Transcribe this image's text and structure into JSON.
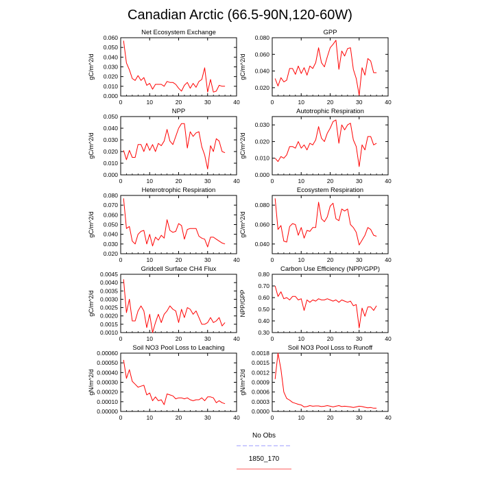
{
  "figure": {
    "title": "Canadian Arctic (66.5-90N,120-60W)"
  },
  "legend": {
    "items": [
      {
        "label": "No Obs",
        "color": "#9999ff",
        "style": "dashed"
      },
      {
        "label": "1850_170",
        "color": "#ff5555",
        "style": "solid"
      }
    ]
  },
  "chart_data": [
    {
      "type": "line",
      "title": "Net Ecosystem Exchange",
      "ylabel": "gC/m^2/d",
      "xlim": [
        0,
        40
      ],
      "ylim": [
        0,
        0.06
      ],
      "xticks": [
        0,
        10,
        20,
        30,
        40
      ],
      "yticks": [
        "0.000",
        "0.010",
        "0.020",
        "0.030",
        "0.040",
        "0.050",
        "0.060"
      ],
      "series": [
        {
          "color": "#ff0000",
          "x": [
            1,
            2,
            3,
            4,
            5,
            6,
            7,
            8,
            9,
            10,
            11,
            12,
            13,
            14,
            15,
            16,
            17,
            18,
            19,
            20,
            21,
            22,
            23,
            24,
            25,
            26,
            27,
            28,
            29,
            30,
            31,
            32,
            33,
            34,
            35,
            36
          ],
          "values": [
            0.057,
            0.034,
            0.027,
            0.018,
            0.016,
            0.021,
            0.016,
            0.019,
            0.011,
            0.013,
            0.007,
            0.012,
            0.012,
            0.012,
            0.01,
            0.015,
            0.014,
            0.014,
            0.012,
            0.008,
            0.005,
            0.011,
            0.014,
            0.008,
            0.013,
            0.009,
            0.015,
            0.017,
            0.029,
            0.004,
            0.017,
            0.004,
            0.005,
            0.011,
            0.01,
            0.01
          ]
        }
      ]
    },
    {
      "type": "line",
      "title": "GPP",
      "ylabel": "gC/m^2/d",
      "xlim": [
        0,
        40
      ],
      "ylim": [
        0.01,
        0.08
      ],
      "xticks": [
        0,
        10,
        20,
        30,
        40
      ],
      "yticks": [
        "0.020",
        "0.040",
        "0.060",
        "0.080"
      ],
      "series": [
        {
          "color": "#ff0000",
          "x": [
            1,
            2,
            3,
            4,
            5,
            6,
            7,
            8,
            9,
            10,
            11,
            12,
            13,
            14,
            15,
            16,
            17,
            18,
            19,
            20,
            21,
            22,
            23,
            24,
            25,
            26,
            27,
            28,
            29,
            30,
            31,
            32,
            33,
            34,
            35,
            36
          ],
          "values": [
            0.031,
            0.022,
            0.032,
            0.027,
            0.029,
            0.043,
            0.043,
            0.036,
            0.046,
            0.037,
            0.044,
            0.035,
            0.046,
            0.043,
            0.05,
            0.068,
            0.05,
            0.045,
            0.057,
            0.068,
            0.072,
            0.077,
            0.042,
            0.064,
            0.058,
            0.067,
            0.068,
            0.042,
            0.031,
            0.011,
            0.044,
            0.035,
            0.055,
            0.052,
            0.038,
            0.038
          ]
        }
      ]
    },
    {
      "type": "line",
      "title": "NPP",
      "ylabel": "gC/m^2/d",
      "xlim": [
        0,
        40
      ],
      "ylim": [
        0,
        0.05
      ],
      "xticks": [
        0,
        10,
        20,
        30,
        40
      ],
      "yticks": [
        "0.000",
        "0.010",
        "0.020",
        "0.030",
        "0.040",
        "0.050"
      ],
      "series": [
        {
          "color": "#ff0000",
          "x": [
            1,
            2,
            3,
            4,
            5,
            6,
            7,
            8,
            9,
            10,
            11,
            12,
            13,
            14,
            15,
            16,
            17,
            18,
            19,
            20,
            21,
            22,
            23,
            24,
            25,
            26,
            27,
            28,
            29,
            30,
            31,
            32,
            33,
            34,
            35,
            36
          ],
          "values": [
            0.021,
            0.013,
            0.021,
            0.015,
            0.015,
            0.026,
            0.026,
            0.02,
            0.027,
            0.021,
            0.026,
            0.02,
            0.027,
            0.025,
            0.029,
            0.039,
            0.029,
            0.026,
            0.033,
            0.04,
            0.044,
            0.044,
            0.023,
            0.037,
            0.033,
            0.036,
            0.037,
            0.024,
            0.017,
            0.005,
            0.025,
            0.02,
            0.031,
            0.029,
            0.02,
            0.019
          ]
        }
      ]
    },
    {
      "type": "line",
      "title": "Autotrophic Respiration",
      "ylabel": "gC/m^2/d",
      "xlim": [
        0,
        40
      ],
      "ylim": [
        0,
        0.035
      ],
      "xticks": [
        0,
        10,
        20,
        30,
        40
      ],
      "yticks": [
        "0.000",
        "0.010",
        "0.020",
        "0.030"
      ],
      "series": [
        {
          "color": "#ff0000",
          "x": [
            1,
            2,
            3,
            4,
            5,
            6,
            7,
            8,
            9,
            10,
            11,
            12,
            13,
            14,
            15,
            16,
            17,
            18,
            19,
            20,
            21,
            22,
            23,
            24,
            25,
            26,
            27,
            28,
            29,
            30,
            31,
            32,
            33,
            34,
            35,
            36
          ],
          "values": [
            0.01,
            0.008,
            0.011,
            0.01,
            0.012,
            0.017,
            0.017,
            0.016,
            0.02,
            0.016,
            0.018,
            0.015,
            0.019,
            0.018,
            0.021,
            0.029,
            0.022,
            0.02,
            0.025,
            0.028,
            0.032,
            0.033,
            0.019,
            0.03,
            0.027,
            0.03,
            0.031,
            0.021,
            0.017,
            0.005,
            0.018,
            0.015,
            0.023,
            0.023,
            0.018,
            0.019
          ]
        }
      ]
    },
    {
      "type": "line",
      "title": "Heterotrophic Respiration",
      "ylabel": "gC/m^2/d",
      "xlim": [
        0,
        40
      ],
      "ylim": [
        0.02,
        0.08
      ],
      "xticks": [
        0,
        10,
        20,
        30,
        40
      ],
      "yticks": [
        "0.020",
        "0.030",
        "0.040",
        "0.050",
        "0.060",
        "0.070",
        "0.080"
      ],
      "series": [
        {
          "color": "#ff0000",
          "x": [
            1,
            2,
            3,
            4,
            5,
            6,
            7,
            8,
            9,
            10,
            11,
            12,
            13,
            14,
            15,
            16,
            17,
            18,
            19,
            20,
            21,
            22,
            23,
            24,
            25,
            26,
            27,
            28,
            29,
            30,
            31,
            32,
            33,
            34,
            35,
            36
          ],
          "values": [
            0.077,
            0.046,
            0.048,
            0.033,
            0.03,
            0.04,
            0.043,
            0.044,
            0.03,
            0.04,
            0.028,
            0.037,
            0.034,
            0.039,
            0.036,
            0.055,
            0.044,
            0.042,
            0.043,
            0.051,
            0.049,
            0.035,
            0.045,
            0.046,
            0.046,
            0.046,
            0.038,
            0.036,
            0.035,
            0.027,
            0.037,
            0.037,
            0.035,
            0.033,
            0.031,
            0.03
          ]
        }
      ]
    },
    {
      "type": "line",
      "title": "Ecosystem Respiration",
      "ylabel": "gC/m^2/d",
      "xlim": [
        0,
        40
      ],
      "ylim": [
        0.03,
        0.09
      ],
      "xticks": [
        0,
        10,
        20,
        30,
        40
      ],
      "yticks": [
        "0.040",
        "0.060",
        "0.080"
      ],
      "series": [
        {
          "color": "#ff0000",
          "x": [
            1,
            2,
            3,
            4,
            5,
            6,
            7,
            8,
            9,
            10,
            11,
            12,
            13,
            14,
            15,
            16,
            17,
            18,
            19,
            20,
            21,
            22,
            23,
            24,
            25,
            26,
            27,
            28,
            29,
            30,
            31,
            32,
            33,
            34,
            35,
            36
          ],
          "values": [
            0.087,
            0.055,
            0.059,
            0.043,
            0.042,
            0.058,
            0.061,
            0.06,
            0.049,
            0.057,
            0.046,
            0.054,
            0.053,
            0.057,
            0.057,
            0.083,
            0.066,
            0.063,
            0.068,
            0.079,
            0.082,
            0.066,
            0.064,
            0.076,
            0.074,
            0.076,
            0.06,
            0.057,
            0.052,
            0.039,
            0.044,
            0.049,
            0.057,
            0.055,
            0.049,
            0.048
          ]
        }
      ]
    },
    {
      "type": "line",
      "title": "Gridcell Surface CH4 Flux",
      "ylabel": "gC/m^2/d",
      "xlim": [
        0,
        40
      ],
      "ylim": [
        0.001,
        0.0045
      ],
      "xticks": [
        0,
        10,
        20,
        30,
        40
      ],
      "yticks": [
        "0.0010",
        "0.0015",
        "0.0020",
        "0.0025",
        "0.0030",
        "0.0035",
        "0.0040",
        "0.0045"
      ],
      "series": [
        {
          "color": "#ff0000",
          "x": [
            1,
            2,
            3,
            4,
            5,
            6,
            7,
            8,
            9,
            10,
            11,
            12,
            13,
            14,
            15,
            16,
            17,
            18,
            19,
            20,
            21,
            22,
            23,
            24,
            25,
            26,
            27,
            28,
            29,
            30,
            31,
            32,
            33,
            34,
            35,
            36
          ],
          "values": [
            0.0042,
            0.0022,
            0.003,
            0.0017,
            0.0017,
            0.0023,
            0.0026,
            0.0023,
            0.0013,
            0.0021,
            0.001,
            0.0016,
            0.0021,
            0.0016,
            0.0021,
            0.0023,
            0.0026,
            0.0024,
            0.0023,
            0.0016,
            0.0024,
            0.0019,
            0.0025,
            0.0024,
            0.0021,
            0.0023,
            0.0019,
            0.0015,
            0.0015,
            0.0016,
            0.0019,
            0.0016,
            0.0017,
            0.0019,
            0.0014,
            0.0016
          ]
        }
      ]
    },
    {
      "type": "line",
      "title": "Carbon Use Efficiency (NPP/GPP)",
      "ylabel": "NPP/GPP",
      "xlim": [
        0,
        40
      ],
      "ylim": [
        0.3,
        0.8
      ],
      "xticks": [
        0,
        10,
        20,
        30,
        40
      ],
      "yticks": [
        "0.30",
        "0.40",
        "0.50",
        "0.60",
        "0.70",
        "0.80"
      ],
      "series": [
        {
          "color": "#ff0000",
          "x": [
            1,
            2,
            3,
            4,
            5,
            6,
            7,
            8,
            9,
            10,
            11,
            12,
            13,
            14,
            15,
            16,
            17,
            18,
            19,
            20,
            21,
            22,
            23,
            24,
            25,
            26,
            27,
            28,
            29,
            30,
            31,
            32,
            33,
            34,
            35,
            36
          ],
          "values": [
            0.7,
            0.61,
            0.65,
            0.59,
            0.6,
            0.58,
            0.61,
            0.61,
            0.58,
            0.59,
            0.49,
            0.58,
            0.56,
            0.58,
            0.57,
            0.59,
            0.58,
            0.58,
            0.59,
            0.58,
            0.57,
            0.58,
            0.56,
            0.58,
            0.57,
            0.56,
            0.57,
            0.53,
            0.54,
            0.34,
            0.51,
            0.44,
            0.52,
            0.52,
            0.49,
            0.53
          ]
        }
      ]
    },
    {
      "type": "line",
      "title": "Soil NO3 Pool Loss to Leaching",
      "ylabel": "gN/m^2/d",
      "xlim": [
        0,
        40
      ],
      "ylim": [
        0,
        0.0006
      ],
      "xticks": [
        0,
        10,
        20,
        30,
        40
      ],
      "yticks": [
        "0.00000",
        "0.00010",
        "0.00020",
        "0.00030",
        "0.00040",
        "0.00050",
        "0.00060"
      ],
      "series": [
        {
          "color": "#ff0000",
          "x": [
            1,
            2,
            3,
            4,
            5,
            6,
            7,
            8,
            9,
            10,
            11,
            12,
            13,
            14,
            15,
            16,
            17,
            18,
            19,
            20,
            21,
            22,
            23,
            24,
            25,
            26,
            27,
            28,
            29,
            30,
            31,
            32,
            33,
            34,
            35,
            36
          ],
          "values": [
            0.00053,
            0.00034,
            0.00043,
            0.00031,
            0.00028,
            0.00025,
            0.00026,
            0.00027,
            0.00017,
            0.00019,
            0.00011,
            0.00015,
            0.00011,
            0.00012,
            7e-05,
            0.00018,
            0.00017,
            0.00016,
            0.00013,
            0.00014,
            0.00014,
            0.00013,
            0.00014,
            0.00012,
            0.00011,
            0.00012,
            0.00012,
            0.00014,
            0.00011,
            0.00015,
            0.00015,
            0.00014,
            9e-05,
            0.00011,
            9e-05,
            8e-05
          ]
        }
      ]
    },
    {
      "type": "line",
      "title": "Soil NO3 Pool Loss to Runoff",
      "ylabel": "gN/m^2/d",
      "xlim": [
        0,
        40
      ],
      "ylim": [
        0,
        0.0018
      ],
      "xticks": [
        0,
        10,
        20,
        30,
        40
      ],
      "yticks": [
        "0.0000",
        "0.0003",
        "0.0006",
        "0.0009",
        "0.0012",
        "0.0015",
        "0.0018"
      ],
      "series": [
        {
          "color": "#ff0000",
          "x": [
            1,
            2,
            3,
            4,
            5,
            6,
            7,
            8,
            9,
            10,
            11,
            12,
            13,
            14,
            15,
            16,
            17,
            18,
            19,
            20,
            21,
            22,
            23,
            24,
            25,
            26,
            27,
            28,
            29,
            30,
            31,
            32,
            33,
            34,
            35,
            36
          ],
          "values": [
            0.001,
            0.0018,
            0.0013,
            0.0006,
            0.0004,
            0.00035,
            0.00028,
            0.00025,
            0.00022,
            0.0002,
            0.00014,
            0.00015,
            0.00018,
            0.00016,
            0.00017,
            0.00017,
            0.00015,
            0.00016,
            0.00018,
            0.00016,
            0.00014,
            0.00016,
            0.00018,
            0.00015,
            0.00016,
            0.00015,
            0.00014,
            0.00012,
            0.00014,
            0.00016,
            0.00015,
            0.00013,
            0.00011,
            0.00012,
            0.0001,
            0.0001
          ]
        }
      ]
    }
  ]
}
